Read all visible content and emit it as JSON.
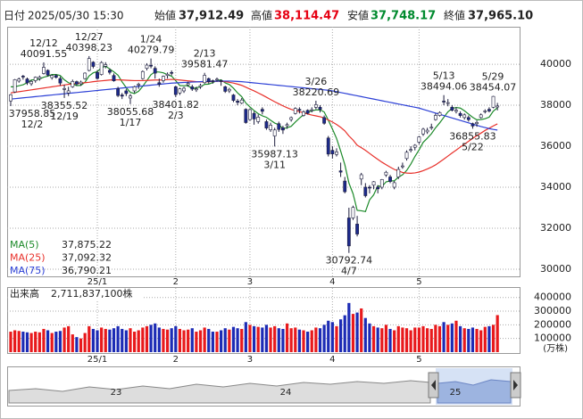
{
  "chart_data": {
    "type": "candlestick",
    "header": {
      "date_label": "日付",
      "date": "2025/05/30 15:30",
      "open_label": "始値",
      "open": "37,912.49",
      "high_label": "高値",
      "high": "38,114.47",
      "low_label": "安値",
      "low": "37,748.17",
      "close_label": "終値",
      "close": "37,965.10"
    },
    "categories": [
      null,
      null,
      null,
      null,
      null,
      null,
      null,
      null,
      null,
      null,
      null,
      null,
      null,
      null,
      null,
      null,
      null,
      null,
      null,
      null,
      null,
      "25/1",
      null,
      null,
      null,
      null,
      null,
      null,
      null,
      null,
      null,
      null,
      null,
      null,
      null,
      null,
      null,
      null,
      null,
      null,
      "2",
      null,
      null,
      null,
      null,
      null,
      null,
      null,
      null,
      null,
      null,
      null,
      null,
      null,
      null,
      null,
      null,
      null,
      "3",
      null,
      null,
      null,
      null,
      null,
      null,
      null,
      null,
      null,
      null,
      null,
      null,
      null,
      null,
      null,
      null,
      null,
      null,
      null,
      "4",
      null,
      null,
      null,
      null,
      null,
      null,
      null,
      null,
      null,
      null,
      null,
      null,
      null,
      null,
      null,
      null,
      null,
      null,
      null,
      null,
      "5",
      null,
      null,
      null,
      null,
      null,
      null,
      null,
      null,
      null,
      null,
      null,
      null,
      null,
      null,
      null,
      null,
      null,
      null,
      null
    ],
    "open": [
      38210,
      38650,
      39180,
      39420,
      39280,
      39050,
      39200,
      39300,
      39550,
      39700,
      39350,
      39450,
      39300,
      38800,
      38600,
      38900,
      39150,
      39050,
      39300,
      39700,
      40100,
      39600,
      39500,
      39900,
      39700,
      39450,
      38800,
      38500,
      38700,
      38350,
      38700,
      39000,
      39300,
      39800,
      39950,
      39800,
      39100,
      39200,
      39450,
      39600,
      38900,
      38600,
      38700,
      39000,
      38900,
      38750,
      38900,
      39100,
      39300,
      39200,
      39250,
      39200,
      38900,
      38700,
      38500,
      38200,
      38100,
      37800,
      37300,
      37600,
      37200,
      37800,
      37200,
      36800,
      36500,
      37100,
      36900,
      37000,
      37300,
      37600,
      37800,
      37500,
      37750,
      37750,
      37900,
      37900,
      37400,
      36400,
      35800,
      35600,
      34800,
      34300,
      32500,
      32500,
      32200,
      34400,
      34000,
      34000,
      34100,
      34000,
      34000,
      34600,
      34500,
      34000,
      34500,
      35000,
      35400,
      35800,
      35950,
      36200,
      36600,
      36700,
      36900,
      37300,
      37500,
      38200,
      38100,
      37900,
      37700,
      37600,
      37400,
      37400,
      37100,
      37100,
      37400,
      37700,
      37800,
      37900,
      37912.49
    ],
    "high": [
      38550,
      39280,
      39350,
      39480,
      39350,
      39220,
      39400,
      39450,
      40091.55,
      39750,
      39500,
      39520,
      39400,
      39000,
      38900,
      39250,
      39200,
      39200,
      39600,
      40398.23,
      40150,
      39700,
      40150,
      40100,
      39800,
      39550,
      38900,
      38600,
      38800,
      38550,
      38950,
      39100,
      39700,
      40050,
      40279.79,
      39900,
      39300,
      39450,
      39600,
      39700,
      38950,
      38850,
      38900,
      39150,
      39000,
      38900,
      39050,
      39581.47,
      39350,
      39250,
      39350,
      39250,
      38950,
      38850,
      38550,
      38300,
      38350,
      37850,
      37850,
      37700,
      37550,
      37900,
      37300,
      37150,
      36900,
      37200,
      37000,
      37150,
      37450,
      37900,
      37900,
      37750,
      37800,
      37900,
      38220.69,
      38000,
      37500,
      36500,
      36000,
      35900,
      35200,
      34500,
      33000,
      33100,
      32600,
      34700,
      34200,
      34100,
      34300,
      34100,
      34400,
      34800,
      34600,
      34300,
      35000,
      35200,
      35800,
      36000,
      36100,
      36500,
      36900,
      36900,
      37100,
      37600,
      37700,
      38494.06,
      38300,
      38000,
      37900,
      37700,
      37600,
      37500,
      37150,
      37250,
      37600,
      37800,
      37900,
      38454.07,
      38114.47
    ],
    "low": [
      37958.85,
      38600,
      39100,
      39250,
      38990,
      38950,
      39100,
      39200,
      39500,
      39400,
      39250,
      39300,
      38950,
      38355.52,
      38450,
      38850,
      38950,
      38950,
      39250,
      39650,
      39800,
      39250,
      39450,
      39800,
      39500,
      39150,
      38400,
      38300,
      38450,
      38055.68,
      38600,
      38800,
      39250,
      39700,
      39800,
      39300,
      38900,
      39100,
      39300,
      39450,
      38401.82,
      38500,
      38600,
      38900,
      38700,
      38650,
      38800,
      39050,
      39050,
      39050,
      39150,
      38950,
      38600,
      38600,
      38150,
      38000,
      38050,
      37100,
      37250,
      37050,
      37100,
      37550,
      36800,
      36700,
      35987.13,
      36700,
      36600,
      36850,
      37200,
      37550,
      37600,
      37450,
      37550,
      37650,
      37800,
      37650,
      37050,
      35500,
      35400,
      35500,
      34500,
      33700,
      30792.74,
      32400,
      31600,
      34100,
      33500,
      33700,
      33900,
      33700,
      33900,
      34500,
      34200,
      33900,
      34400,
      34900,
      35300,
      35700,
      35800,
      36100,
      36500,
      36600,
      36800,
      37250,
      37450,
      38000,
      37950,
      37700,
      37600,
      37400,
      37300,
      37200,
      36855.83,
      36950,
      37350,
      37600,
      37650,
      37850,
      37748.17
    ],
    "close": [
      38513,
      39248,
      39276,
      39395,
      39091,
      39160,
      39367,
      39372,
      39849,
      39470,
      39457,
      39364,
      39081,
      38813,
      38701,
      39161,
      39036,
      39130,
      39568,
      40281,
      39894,
      39307,
      40083,
      39981,
      39605,
      39190,
      38474,
      38444,
      38572,
      38451,
      38902,
      39027,
      39646,
      39958,
      39931,
      39565,
      39016,
      39414,
      39513,
      39572,
      38520,
      38798,
      38831,
      39066,
      38787,
      38801,
      38963,
      39461,
      39149,
      39174,
      39270,
      39164,
      38678,
      38776,
      38237,
      38142,
      38256,
      37155,
      37785,
      37331,
      37418,
      37704,
      36887,
      37028,
      36793,
      36819,
      36790,
      37053,
      37396,
      37845,
      37751,
      37677,
      37608,
      37780,
      38027,
      37799,
      37120,
      35617,
      35624,
      35725,
      34736,
      33780,
      31136,
      33012,
      31714,
      34609,
      33586,
      33982,
      34267,
      33920,
      34377,
      34730,
      34280,
      34220,
      34868,
      35039,
      35705,
      35839,
      36045,
      36452,
      36831,
      36780,
      36928,
      37503,
      37644,
      38183,
      38128,
      37755,
      37753,
      37498,
      37529,
      37299,
      36986,
      37160,
      37531,
      37724,
      37722,
      38432,
      37965.1
    ],
    "up_color": "#ffffff",
    "down_color": "#1c2a8c",
    "wick_color": "#1c1c3c",
    "ylim": [
      29650,
      41830
    ],
    "yticks": [
      30000,
      32000,
      34000,
      36000,
      38000,
      40000
    ],
    "grid": true,
    "series": [
      {
        "name": "MA(5)",
        "color": "#1d8a2a",
        "current": "37,875.22",
        "values": [
          38900,
          38900,
          38950,
          39000,
          39100,
          39230,
          39250,
          39280,
          39370,
          39420,
          39500,
          39500,
          39450,
          39240,
          39100,
          39030,
          38960,
          38970,
          39120,
          39430,
          39580,
          39640,
          39830,
          39910,
          39770,
          39630,
          39470,
          39140,
          38860,
          38630,
          38570,
          38680,
          38920,
          39200,
          39490,
          39630,
          39620,
          39580,
          39490,
          39420,
          39200,
          38960,
          38950,
          38960,
          38800,
          38860,
          38890,
          39020,
          39030,
          39110,
          39200,
          39240,
          39090,
          39010,
          38830,
          38600,
          38420,
          38110,
          37920,
          37740,
          37590,
          37480,
          37410,
          37270,
          37130,
          37050,
          36860,
          36900,
          36970,
          37180,
          37370,
          37540,
          37660,
          37730,
          37770,
          37780,
          37670,
          37270,
          36840,
          36380,
          35760,
          35100,
          34200,
          33680,
          32870,
          32850,
          32810,
          33380,
          33630,
          34070,
          34030,
          34260,
          34310,
          34310,
          34490,
          34610,
          34820,
          35130,
          35500,
          35820,
          36190,
          36390,
          36610,
          36900,
          37140,
          37410,
          37680,
          37840,
          37890,
          37860,
          37730,
          37570,
          37410,
          37290,
          37300,
          37340,
          37420,
          37710,
          37875.22
        ]
      },
      {
        "name": "MA(25)",
        "color": "#e8302a",
        "current": "37,092.32",
        "values": [
          38600,
          38630,
          38660,
          38690,
          38720,
          38750,
          38780,
          38810,
          38840,
          38870,
          38900,
          38930,
          38960,
          38990,
          39020,
          39040,
          39060,
          39080,
          39100,
          39120,
          39150,
          39170,
          39190,
          39210,
          39230,
          39240,
          39240,
          39230,
          39220,
          39210,
          39200,
          39200,
          39200,
          39210,
          39220,
          39230,
          39230,
          39240,
          39250,
          39260,
          39250,
          39230,
          39210,
          39190,
          39170,
          39150,
          39140,
          39140,
          39150,
          39160,
          39170,
          39170,
          39150,
          39120,
          39080,
          39030,
          38970,
          38880,
          38790,
          38700,
          38600,
          38500,
          38390,
          38280,
          38170,
          38070,
          37970,
          37880,
          37800,
          37740,
          37690,
          37630,
          37570,
          37520,
          37480,
          37440,
          37380,
          37280,
          37180,
          37060,
          36920,
          36750,
          36500,
          36300,
          36050,
          35930,
          35800,
          35650,
          35500,
          35360,
          35220,
          35100,
          34980,
          34870,
          34790,
          34720,
          34690,
          34680,
          34700,
          34740,
          34810,
          34890,
          34980,
          35090,
          35230,
          35370,
          35520,
          35670,
          35810,
          35960,
          36100,
          36240,
          36380,
          36510,
          36640,
          36770,
          36880,
          36990,
          37092.32
        ]
      },
      {
        "name": "MA(75)",
        "color": "#2b3fd6",
        "current": "36,790.21",
        "values": [
          38300,
          38320,
          38340,
          38360,
          38380,
          38400,
          38420,
          38440,
          38460,
          38480,
          38500,
          38520,
          38540,
          38560,
          38580,
          38600,
          38620,
          38640,
          38660,
          38680,
          38700,
          38720,
          38740,
          38760,
          38780,
          38800,
          38820,
          38840,
          38860,
          38880,
          38900,
          38920,
          38940,
          38960,
          38980,
          39000,
          39020,
          39040,
          39060,
          39080,
          39090,
          39100,
          39110,
          39120,
          39130,
          39140,
          39150,
          39160,
          39160,
          39170,
          39170,
          39180,
          39180,
          39180,
          39170,
          39160,
          39150,
          39130,
          39110,
          39090,
          39070,
          39050,
          39030,
          39010,
          38990,
          38970,
          38950,
          38930,
          38910,
          38890,
          38870,
          38850,
          38830,
          38810,
          38790,
          38770,
          38750,
          38730,
          38700,
          38660,
          38620,
          38580,
          38540,
          38500,
          38460,
          38420,
          38380,
          38340,
          38300,
          38260,
          38220,
          38180,
          38140,
          38100,
          38060,
          38020,
          37980,
          37940,
          37900,
          37860,
          37800,
          37740,
          37680,
          37620,
          37560,
          37500,
          37440,
          37380,
          37320,
          37260,
          37200,
          37140,
          37080,
          37020,
          36960,
          36910,
          36860,
          36820,
          36790.21
        ]
      }
    ],
    "annotations": [
      {
        "value": 37958.85,
        "date": "12/2"
      },
      {
        "value": 40091.55,
        "date": "12/12"
      },
      {
        "value": 38355.52,
        "date": "12/19"
      },
      {
        "value": 40398.23,
        "date": "12/27"
      },
      {
        "value": 38055.68,
        "date": "1/17"
      },
      {
        "value": 40279.79,
        "date": "1/24"
      },
      {
        "value": 38401.82,
        "date": "2/3"
      },
      {
        "value": 39581.47,
        "date": "2/13"
      },
      {
        "value": 35987.13,
        "date": "3/11"
      },
      {
        "value": 38220.69,
        "date": "3/26"
      },
      {
        "value": 30792.74,
        "date": "4/7"
      },
      {
        "value": 38494.06,
        "date": "5/13"
      },
      {
        "value": 36855.83,
        "date": "5/22"
      },
      {
        "value": 38454.07,
        "date": "5/29"
      }
    ],
    "volume": {
      "name": "出来高",
      "total": "2,711,837,100株",
      "unit": "(万株)",
      "up_color": "#e8191c",
      "down_color": "#1c2bb5",
      "ylim": [
        0,
        470000
      ],
      "yticks": [
        100000,
        200000,
        300000,
        400000
      ],
      "values": [
        150000,
        160000,
        155000,
        150000,
        145000,
        140000,
        150000,
        145000,
        170000,
        160000,
        140000,
        150000,
        155000,
        180000,
        190000,
        130000,
        110000,
        100000,
        140000,
        190000,
        170000,
        160000,
        180000,
        170000,
        165000,
        175000,
        190000,
        170000,
        160000,
        175000,
        150000,
        160000,
        180000,
        190000,
        200000,
        210000,
        180000,
        170000,
        165000,
        175000,
        190000,
        170000,
        160000,
        165000,
        175000,
        150000,
        160000,
        180000,
        170000,
        150000,
        150000,
        160000,
        175000,
        165000,
        185000,
        175000,
        170000,
        220000,
        200000,
        190000,
        185000,
        180000,
        200000,
        180000,
        190000,
        175000,
        170000,
        210000,
        175000,
        180000,
        165000,
        160000,
        150000,
        160000,
        180000,
        175000,
        200000,
        230000,
        220000,
        190000,
        240000,
        270000,
        360000,
        280000,
        290000,
        320000,
        250000,
        210000,
        190000,
        180000,
        175000,
        200000,
        170000,
        160000,
        190000,
        180000,
        175000,
        160000,
        180000,
        180000,
        190000,
        175000,
        170000,
        200000,
        190000,
        220000,
        200000,
        210000,
        230000,
        190000,
        175000,
        170000,
        180000,
        170000,
        160000,
        185000,
        190000,
        200000,
        271184
      ]
    },
    "navigator_labels": [
      "23",
      "24",
      "25"
    ]
  }
}
